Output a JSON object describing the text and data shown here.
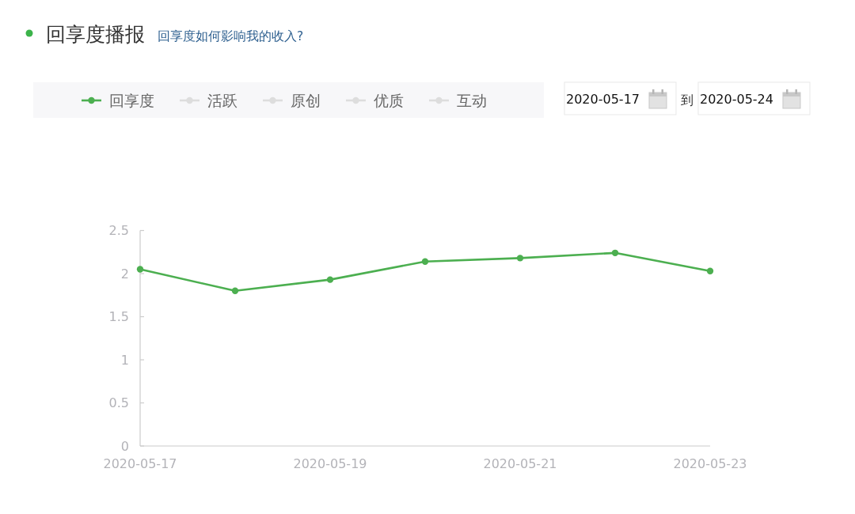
{
  "chart_data": {
    "type": "line",
    "title": "回享度播报",
    "subtitle": "回享度如何影响我的收入?",
    "categories": [
      "2020-05-17",
      null,
      "2020-05-19",
      null,
      "2020-05-21",
      null,
      "2020-05-23"
    ],
    "series": [
      {
        "name": "回享度",
        "color": "#4caf50",
        "values": [
          2.05,
          1.8,
          1.93,
          2.14,
          2.18,
          2.24,
          2.03
        ]
      },
      {
        "name": "活跃",
        "color": "#dddddd",
        "values": [
          null,
          null,
          null,
          null,
          null,
          null,
          null
        ]
      },
      {
        "name": "原创",
        "color": "#dddddd",
        "values": [
          null,
          null,
          null,
          null,
          null,
          null,
          null
        ]
      },
      {
        "name": "优质",
        "color": "#dddddd",
        "values": [
          null,
          null,
          null,
          null,
          null,
          null,
          null
        ]
      },
      {
        "name": "互动",
        "color": "#dddddd",
        "values": [
          null,
          null,
          null,
          null,
          null,
          null,
          null
        ]
      }
    ],
    "ylim": [
      0,
      2.5
    ],
    "yticks": [
      0,
      0.5,
      1,
      1.5,
      2,
      2.5
    ],
    "legend": "top",
    "marker": "circle",
    "line_style": "solid",
    "annotations": [
      "2020-05-17",
      "到",
      "2020-05-24"
    ]
  }
}
